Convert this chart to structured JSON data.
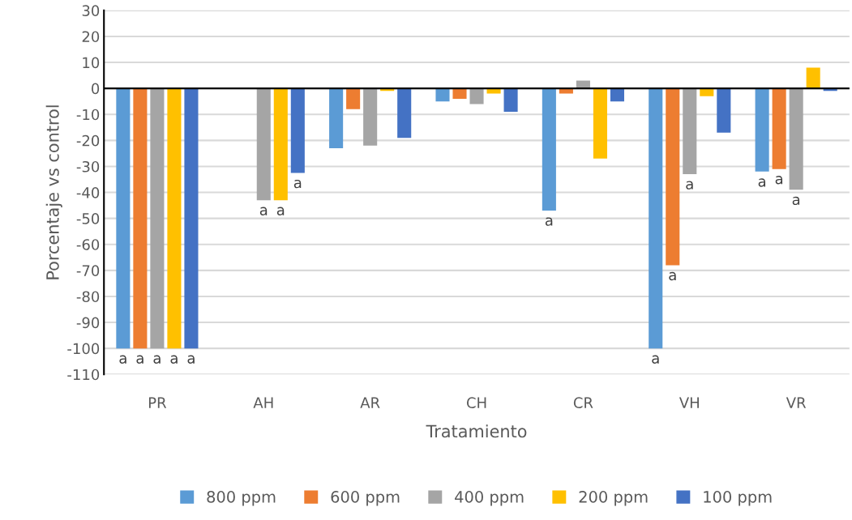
{
  "chart_data": {
    "type": "bar",
    "xlabel": "Tratamiento",
    "ylabel": "Porcentaje vs control",
    "categories": [
      "PR",
      "AH",
      "AR",
      "CH",
      "CR",
      "VH",
      "VR"
    ],
    "series": [
      {
        "name": "800 ppm",
        "color": "#5b9bd5",
        "values": [
          -100,
          null,
          -23,
          -5,
          -47,
          -100,
          -32
        ],
        "value_labels": [
          "a",
          null,
          null,
          null,
          "a",
          "a",
          "a"
        ]
      },
      {
        "name": "600 ppm",
        "color": "#ed7d31",
        "values": [
          -100,
          null,
          -8,
          -4,
          -2,
          -68,
          -31
        ],
        "value_labels": [
          "a",
          null,
          null,
          null,
          null,
          "a",
          "a"
        ]
      },
      {
        "name": "400 ppm",
        "color": "#a5a5a5",
        "values": [
          -100,
          -43,
          -22,
          -6,
          3,
          -33,
          -39
        ],
        "value_labels": [
          "a",
          "a",
          null,
          null,
          null,
          "a",
          "a"
        ]
      },
      {
        "name": "200 ppm",
        "color": "#ffc000",
        "values": [
          -100,
          -43,
          -1,
          -2,
          -27,
          -3,
          8
        ],
        "value_labels": [
          "a",
          "a",
          null,
          null,
          null,
          null,
          null
        ]
      },
      {
        "name": "100 ppm",
        "color": "#4472c4",
        "values": [
          -100,
          -32.5,
          -19,
          -9,
          -5,
          -17,
          -1
        ],
        "value_labels": [
          "a",
          "a",
          null,
          null,
          null,
          null,
          null
        ]
      }
    ],
    "ylim": [
      -110,
      30
    ],
    "yticks": [
      -110,
      -100,
      -90,
      -80,
      -70,
      -60,
      -50,
      -40,
      -30,
      -20,
      -10,
      0,
      10,
      20,
      30
    ],
    "grid": "y",
    "legend": "bottom"
  }
}
